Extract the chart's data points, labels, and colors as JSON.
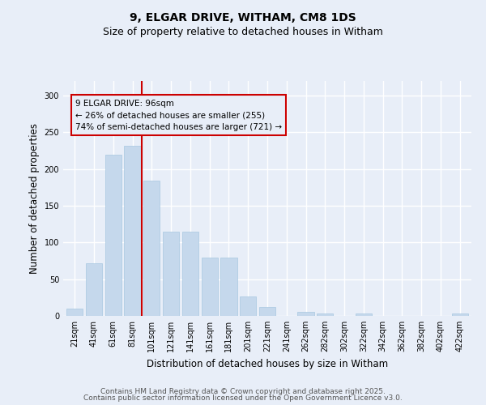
{
  "title1": "9, ELGAR DRIVE, WITHAM, CM8 1DS",
  "title2": "Size of property relative to detached houses in Witham",
  "xlabel": "Distribution of detached houses by size in Witham",
  "ylabel": "Number of detached properties",
  "categories": [
    "21sqm",
    "41sqm",
    "61sqm",
    "81sqm",
    "101sqm",
    "121sqm",
    "141sqm",
    "161sqm",
    "181sqm",
    "201sqm",
    "221sqm",
    "241sqm",
    "262sqm",
    "282sqm",
    "302sqm",
    "322sqm",
    "342sqm",
    "362sqm",
    "382sqm",
    "402sqm",
    "422sqm"
  ],
  "values": [
    10,
    72,
    220,
    232,
    184,
    115,
    115,
    79,
    79,
    26,
    12,
    0,
    6,
    3,
    0,
    3,
    0,
    0,
    0,
    0,
    3
  ],
  "bar_color": "#c5d8ec",
  "bar_edgecolor": "#a8c8e0",
  "bg_color": "#e8eef8",
  "grid_color": "#ffffff",
  "annotation_box_text": "9 ELGAR DRIVE: 96sqm\n← 26% of detached houses are smaller (255)\n74% of semi-detached houses are larger (721) →",
  "annotation_box_color": "#cc0000",
  "vline_color": "#cc0000",
  "vline_pos": 3.5,
  "ylim": [
    0,
    320
  ],
  "yticks": [
    0,
    50,
    100,
    150,
    200,
    250,
    300
  ],
  "footer1": "Contains HM Land Registry data © Crown copyright and database right 2025.",
  "footer2": "Contains public sector information licensed under the Open Government Licence v3.0.",
  "title_fontsize": 10,
  "subtitle_fontsize": 9,
  "axis_label_fontsize": 8.5,
  "tick_fontsize": 7,
  "footer_fontsize": 6.5,
  "ann_fontsize": 7.5
}
